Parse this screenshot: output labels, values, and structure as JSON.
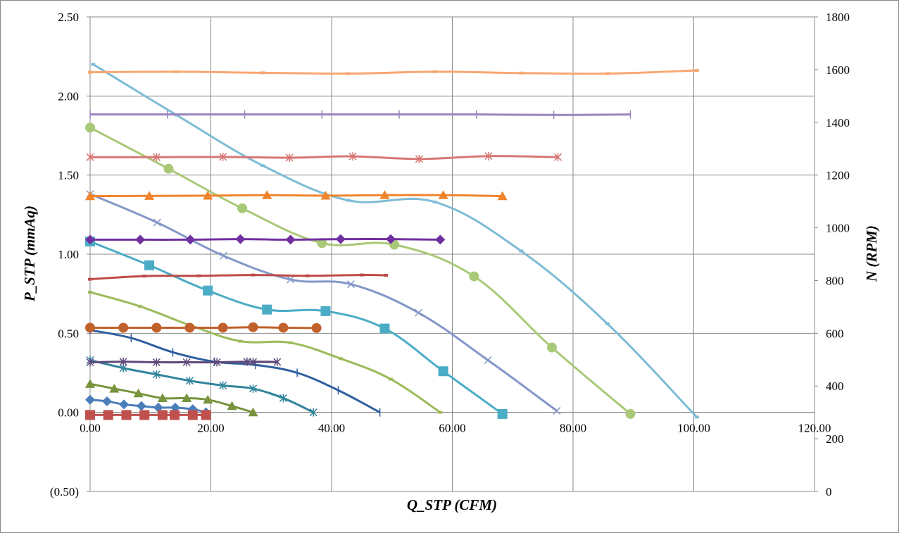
{
  "chart_data": {
    "type": "line",
    "title": "",
    "xlabel": "Q_STP (CFM)",
    "ylabel": "P_STP (mmAq)",
    "y2label": "N (RPM)",
    "xlim": [
      0,
      120
    ],
    "ylim": [
      -0.5,
      2.5
    ],
    "y2lim": [
      0,
      1800
    ],
    "grid": true,
    "legend": "none",
    "x_ticks": [
      0,
      20,
      40,
      60,
      80,
      100,
      120
    ],
    "x_tick_labels": [
      "0.00",
      "20.00",
      "40.00",
      "60.00",
      "80.00",
      "100.00",
      "120.00"
    ],
    "y_ticks": [
      -0.5,
      0,
      0.5,
      1,
      1.5,
      2,
      2.5
    ],
    "y_tick_labels": [
      "(0.50)",
      "0.00",
      "0.50",
      "1.00",
      "1.50",
      "2.00",
      "2.50"
    ],
    "y2_ticks": [
      0,
      200,
      400,
      600,
      800,
      1000,
      1200,
      1400,
      1600,
      1800
    ],
    "y2_tick_labels": [
      "0",
      "200",
      "400",
      "600",
      "800",
      "1000",
      "1200",
      "1400",
      "1600",
      "1800"
    ],
    "pressure_series": [
      {
        "color": "#4A7EBB",
        "marker": "diamond",
        "x": [
          0,
          2.8,
          5.6,
          8.5,
          11.3,
          14.1,
          17,
          19.2
        ],
        "y": [
          0.08,
          0.07,
          0.05,
          0.04,
          0.03,
          0.03,
          0.02,
          0
        ]
      },
      {
        "color": "#77933C",
        "marker": "triangle",
        "x": [
          0,
          4,
          8,
          12,
          16,
          19.5,
          23.5,
          27
        ],
        "y": [
          0.18,
          0.15,
          0.12,
          0.09,
          0.09,
          0.08,
          0.04,
          0
        ]
      },
      {
        "color": "#31859C",
        "marker": "star",
        "x": [
          0,
          5.5,
          11,
          16.5,
          22,
          27,
          32,
          37
        ],
        "y": [
          0.33,
          0.28,
          0.24,
          0.2,
          0.17,
          0.15,
          0.09,
          0
        ]
      },
      {
        "color": "#2E5FA0",
        "marker": "plus",
        "x": [
          0,
          6.8,
          13.7,
          20.6,
          27.4,
          34.3,
          41.1,
          48
        ],
        "y": [
          0.52,
          0.47,
          0.38,
          0.32,
          0.3,
          0.25,
          0.14,
          0
        ]
      },
      {
        "color": "#9BBB59",
        "marker": "dash",
        "x": [
          0,
          8.3,
          16.6,
          24.9,
          33.2,
          41.5,
          49.8,
          58
        ],
        "y": [
          0.76,
          0.67,
          0.55,
          0.45,
          0.44,
          0.34,
          0.21,
          0
        ]
      },
      {
        "color": "#4BACC6",
        "marker": "square",
        "x": [
          0,
          9.8,
          19.5,
          29.3,
          39,
          48.8,
          58.5,
          68.3
        ],
        "y": [
          1.08,
          0.93,
          0.77,
          0.65,
          0.64,
          0.53,
          0.26,
          -0.01
        ]
      },
      {
        "color": "#8497C8",
        "marker": "x",
        "x": [
          0,
          11.1,
          22.1,
          33.2,
          43.2,
          54.4,
          65.9,
          77.3
        ],
        "y": [
          1.38,
          1.2,
          0.99,
          0.84,
          0.81,
          0.63,
          0.33,
          0.01
        ]
      },
      {
        "color": "#A9C978",
        "marker": "circle",
        "x": [
          0,
          13,
          25.2,
          38.4,
          50.4,
          63.6,
          76.5,
          89.5
        ],
        "y": [
          1.8,
          1.54,
          1.29,
          1.07,
          1.06,
          0.86,
          0.41,
          -0.01
        ]
      },
      {
        "color": "#7EBCD5",
        "marker": "dash",
        "x": [
          0.5,
          14.3,
          28.6,
          42.8,
          57.1,
          71.4,
          85.7,
          100.5
        ],
        "y": [
          2.2,
          1.88,
          1.56,
          1.34,
          1.33,
          1.02,
          0.56,
          -0.03
        ]
      }
    ],
    "rpm_series": [
      {
        "color": "#C0504D",
        "marker": "square",
        "x": [
          0,
          3,
          6,
          9,
          12,
          14,
          17,
          19.2
        ],
        "y": [
          290,
          290,
          290,
          290,
          290,
          290,
          290,
          290
        ]
      },
      {
        "color": "#5F497A",
        "marker": "star",
        "x": [
          0,
          5.5,
          11,
          16,
          21,
          26,
          31,
          27
        ],
        "y": [
          490,
          492,
          490,
          490,
          490,
          492,
          491,
          491
        ]
      },
      {
        "color": "#C0602A",
        "marker": "circle",
        "x": [
          0,
          5.5,
          11,
          16.5,
          22,
          27,
          32,
          37.5
        ],
        "y": [
          621,
          621,
          621,
          621,
          621,
          623,
          621,
          620
        ]
      },
      {
        "color": "#BE4B48",
        "marker": "dash",
        "x": [
          0,
          9,
          18,
          27,
          36,
          45,
          49
        ],
        "y": [
          805,
          817,
          818,
          821,
          818,
          821,
          820
        ]
      },
      {
        "color": "#7030A0",
        "marker": "diamond",
        "x": [
          0,
          8.3,
          16.6,
          24.9,
          33.2,
          41.5,
          49.8,
          58
        ],
        "y": [
          955,
          955,
          955,
          957,
          955,
          957,
          957,
          955
        ]
      },
      {
        "color": "#F0842B",
        "marker": "triangle",
        "x": [
          0,
          9.8,
          19.5,
          29.3,
          39,
          48.8,
          58.5,
          68.3
        ],
        "y": [
          1120,
          1121,
          1122,
          1124,
          1122,
          1124,
          1124,
          1120
        ]
      },
      {
        "color": "#D77775",
        "marker": "star",
        "x": [
          0,
          11,
          22,
          33,
          43.5,
          54.5,
          66,
          77.5
        ],
        "y": [
          1268,
          1268,
          1269,
          1266,
          1271,
          1261,
          1272,
          1268
        ]
      },
      {
        "color": "#9A84BD",
        "marker": "plus",
        "x": [
          0,
          12.8,
          25.6,
          38.4,
          51.2,
          64,
          76.8,
          89.5
        ],
        "y": [
          1430,
          1430,
          1430,
          1430,
          1430,
          1430,
          1428,
          1430
        ]
      },
      {
        "color": "#F9A672",
        "marker": "dash",
        "x": [
          0,
          14.3,
          28.6,
          42.8,
          57.1,
          71.4,
          85.7,
          100.5
        ],
        "y": [
          1590,
          1592,
          1588,
          1585,
          1592,
          1587,
          1585,
          1597
        ]
      }
    ]
  },
  "colors": {
    "grid": "#888888",
    "negative_tick": "#FF0000"
  }
}
